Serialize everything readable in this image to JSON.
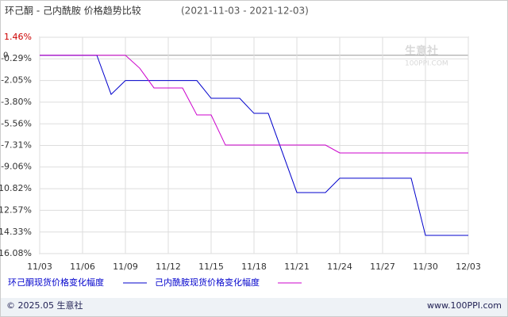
{
  "chart_data": {
    "type": "line",
    "title": "环己酮 - 己内酰胺 价格趋势比较",
    "subtitle": "(2021-11-03 - 2021-12-03)",
    "xlim": [
      0,
      30
    ],
    "xticks": [
      {
        "value": 0,
        "label": "11/03"
      },
      {
        "value": 3,
        "label": "11/06"
      },
      {
        "value": 6,
        "label": "11/09"
      },
      {
        "value": 9,
        "label": "11/12"
      },
      {
        "value": 12,
        "label": "11/15"
      },
      {
        "value": 15,
        "label": "11/18"
      },
      {
        "value": 18,
        "label": "11/21"
      },
      {
        "value": 21,
        "label": "11/24"
      },
      {
        "value": 24,
        "label": "11/27"
      },
      {
        "value": 27,
        "label": "11/30"
      },
      {
        "value": 30,
        "label": "12/03"
      }
    ],
    "ylim": [
      -16.08,
      1.46
    ],
    "yticks": [
      {
        "value": 1.46,
        "label": "1.46%"
      },
      {
        "value": -0.29,
        "label": "-0.29%"
      },
      {
        "value": -2.05,
        "label": "-2.05%"
      },
      {
        "value": -3.8,
        "label": "-3.80%"
      },
      {
        "value": -5.56,
        "label": "-5.56%"
      },
      {
        "value": -7.31,
        "label": "-7.31%"
      },
      {
        "value": -9.06,
        "label": "-9.06%"
      },
      {
        "value": -10.82,
        "label": "-10.82%"
      },
      {
        "value": -12.57,
        "label": "-12.57%"
      },
      {
        "value": -14.33,
        "label": "-14.33%"
      },
      {
        "value": -16.08,
        "label": "-16.08%"
      }
    ],
    "zero_line": {
      "value": 0,
      "label": "0"
    },
    "series": [
      {
        "name": "环己酮现货价格变化幅度",
        "color": "#0000cc",
        "x": [
          0,
          4,
          5,
          6,
          11,
          12,
          14,
          15,
          16,
          18,
          20,
          21,
          26,
          27,
          30
        ],
        "values": [
          0,
          0,
          -3.17,
          -2.05,
          -2.05,
          -3.49,
          -3.49,
          -4.71,
          -4.71,
          -11.13,
          -11.13,
          -9.97,
          -9.97,
          -14.6,
          -14.6
        ]
      },
      {
        "name": "己内酰胺现货价格变化幅度",
        "color": "#cc00cc",
        "x": [
          0,
          6,
          7,
          8,
          10,
          11,
          12,
          13,
          20,
          21,
          30
        ],
        "values": [
          0,
          0,
          -1.05,
          -2.65,
          -2.65,
          -4.84,
          -4.84,
          -7.28,
          -7.28,
          -7.92,
          -7.92
        ]
      }
    ],
    "watermark": [
      "生意社",
      "100PPI.COM"
    ],
    "footer": {
      "left": "© 2025.05 生意社",
      "right": "www.100PPI.com"
    }
  }
}
